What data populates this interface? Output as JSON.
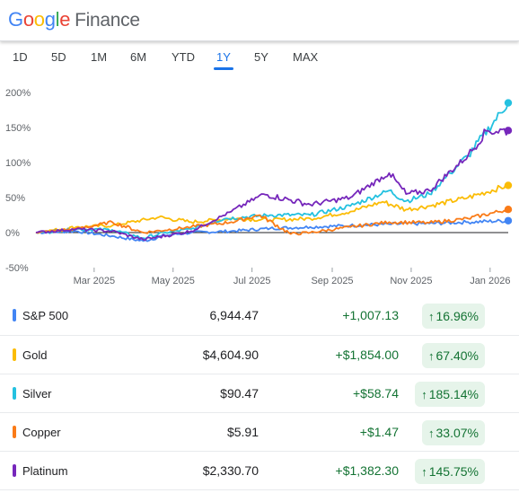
{
  "header": {
    "logo_letters": [
      "G",
      "o",
      "o",
      "g",
      "l",
      "e"
    ],
    "product": "Finance"
  },
  "ranges": [
    "1D",
    "5D",
    "1M",
    "6M",
    "YTD",
    "1Y",
    "5Y",
    "MAX"
  ],
  "selected_range": "1Y",
  "chart_data": {
    "type": "line",
    "x_tick_labels": [
      "Mar 2025",
      "May 2025",
      "Jul 2025",
      "Sep 2025",
      "Nov 2025",
      "Jan 2026"
    ],
    "y_tick_labels": [
      "200%",
      "150%",
      "100%",
      "50%",
      "0%",
      "-50%"
    ],
    "ylim": [
      -50,
      200
    ],
    "x_start": "2025-01-15",
    "x_end": "2026-01-15",
    "series": [
      {
        "name": "S&P 500",
        "color": "#4285f4",
        "points": [
          [
            "2025-01-15",
            0
          ],
          [
            "2025-02-15",
            2
          ],
          [
            "2025-03-15",
            -5
          ],
          [
            "2025-04-08",
            -12
          ],
          [
            "2025-04-25",
            -4
          ],
          [
            "2025-05-15",
            0
          ],
          [
            "2025-06-15",
            2
          ],
          [
            "2025-07-15",
            6
          ],
          [
            "2025-08-15",
            8
          ],
          [
            "2025-09-15",
            10
          ],
          [
            "2025-10-15",
            12
          ],
          [
            "2025-11-15",
            13
          ],
          [
            "2025-12-15",
            15
          ],
          [
            "2026-01-15",
            16.96
          ]
        ]
      },
      {
        "name": "Gold",
        "color": "#fbbc05",
        "points": [
          [
            "2025-01-15",
            0
          ],
          [
            "2025-02-15",
            8
          ],
          [
            "2025-03-15",
            10
          ],
          [
            "2025-04-20",
            22
          ],
          [
            "2025-05-15",
            15
          ],
          [
            "2025-06-15",
            20
          ],
          [
            "2025-07-15",
            18
          ],
          [
            "2025-08-15",
            20
          ],
          [
            "2025-09-15",
            30
          ],
          [
            "2025-10-10",
            44
          ],
          [
            "2025-10-28",
            33
          ],
          [
            "2025-11-15",
            38
          ],
          [
            "2025-12-15",
            50
          ],
          [
            "2026-01-15",
            67.4
          ]
        ]
      },
      {
        "name": "Silver",
        "color": "#24c1e0",
        "points": [
          [
            "2025-01-15",
            0
          ],
          [
            "2025-02-15",
            5
          ],
          [
            "2025-03-15",
            4
          ],
          [
            "2025-04-08",
            -8
          ],
          [
            "2025-04-25",
            0
          ],
          [
            "2025-05-15",
            5
          ],
          [
            "2025-06-10",
            20
          ],
          [
            "2025-07-15",
            25
          ],
          [
            "2025-08-15",
            25
          ],
          [
            "2025-09-15",
            38
          ],
          [
            "2025-10-15",
            60
          ],
          [
            "2025-10-28",
            45
          ],
          [
            "2025-11-15",
            55
          ],
          [
            "2025-12-01",
            85
          ],
          [
            "2025-12-15",
            110
          ],
          [
            "2026-01-15",
            185.14
          ]
        ]
      },
      {
        "name": "Copper",
        "color": "#fa7b17",
        "points": [
          [
            "2025-01-15",
            0
          ],
          [
            "2025-02-15",
            5
          ],
          [
            "2025-03-15",
            15
          ],
          [
            "2025-04-08",
            0
          ],
          [
            "2025-05-15",
            8
          ],
          [
            "2025-06-15",
            15
          ],
          [
            "2025-07-07",
            25
          ],
          [
            "2025-07-31",
            -2
          ],
          [
            "2025-08-15",
            0
          ],
          [
            "2025-09-15",
            8
          ],
          [
            "2025-10-15",
            15
          ],
          [
            "2025-11-15",
            14
          ],
          [
            "2025-12-15",
            20
          ],
          [
            "2026-01-15",
            33.07
          ]
        ]
      },
      {
        "name": "Platinum",
        "color": "#7627bb",
        "points": [
          [
            "2025-01-15",
            0
          ],
          [
            "2025-02-15",
            5
          ],
          [
            "2025-03-15",
            2
          ],
          [
            "2025-04-08",
            -10
          ],
          [
            "2025-05-15",
            2
          ],
          [
            "2025-06-15",
            30
          ],
          [
            "2025-07-10",
            55
          ],
          [
            "2025-08-15",
            40
          ],
          [
            "2025-09-15",
            50
          ],
          [
            "2025-10-15",
            85
          ],
          [
            "2025-10-28",
            55
          ],
          [
            "2025-11-15",
            60
          ],
          [
            "2025-12-15",
            110
          ],
          [
            "2025-12-29",
            145
          ],
          [
            "2026-01-15",
            145.75
          ]
        ]
      }
    ]
  },
  "rows": [
    {
      "name": "S&P 500",
      "price": "6,944.47",
      "change": "+1,007.13",
      "pct": "16.96%",
      "color": "#4285f4"
    },
    {
      "name": "Gold",
      "price": "$4,604.90",
      "change": "+$1,854.00",
      "pct": "67.40%",
      "color": "#fbbc05"
    },
    {
      "name": "Silver",
      "price": "$90.47",
      "change": "+$58.74",
      "pct": "185.14%",
      "color": "#24c1e0"
    },
    {
      "name": "Copper",
      "price": "$5.91",
      "change": "+$1.47",
      "pct": "33.07%",
      "color": "#fa7b17"
    },
    {
      "name": "Platinum",
      "price": "$2,330.70",
      "change": "+$1,382.30",
      "pct": "145.75%",
      "color": "#7627bb"
    }
  ],
  "icons": {
    "pct_arrow": "arrow-up-icon"
  },
  "arrow_glyph": "↑"
}
